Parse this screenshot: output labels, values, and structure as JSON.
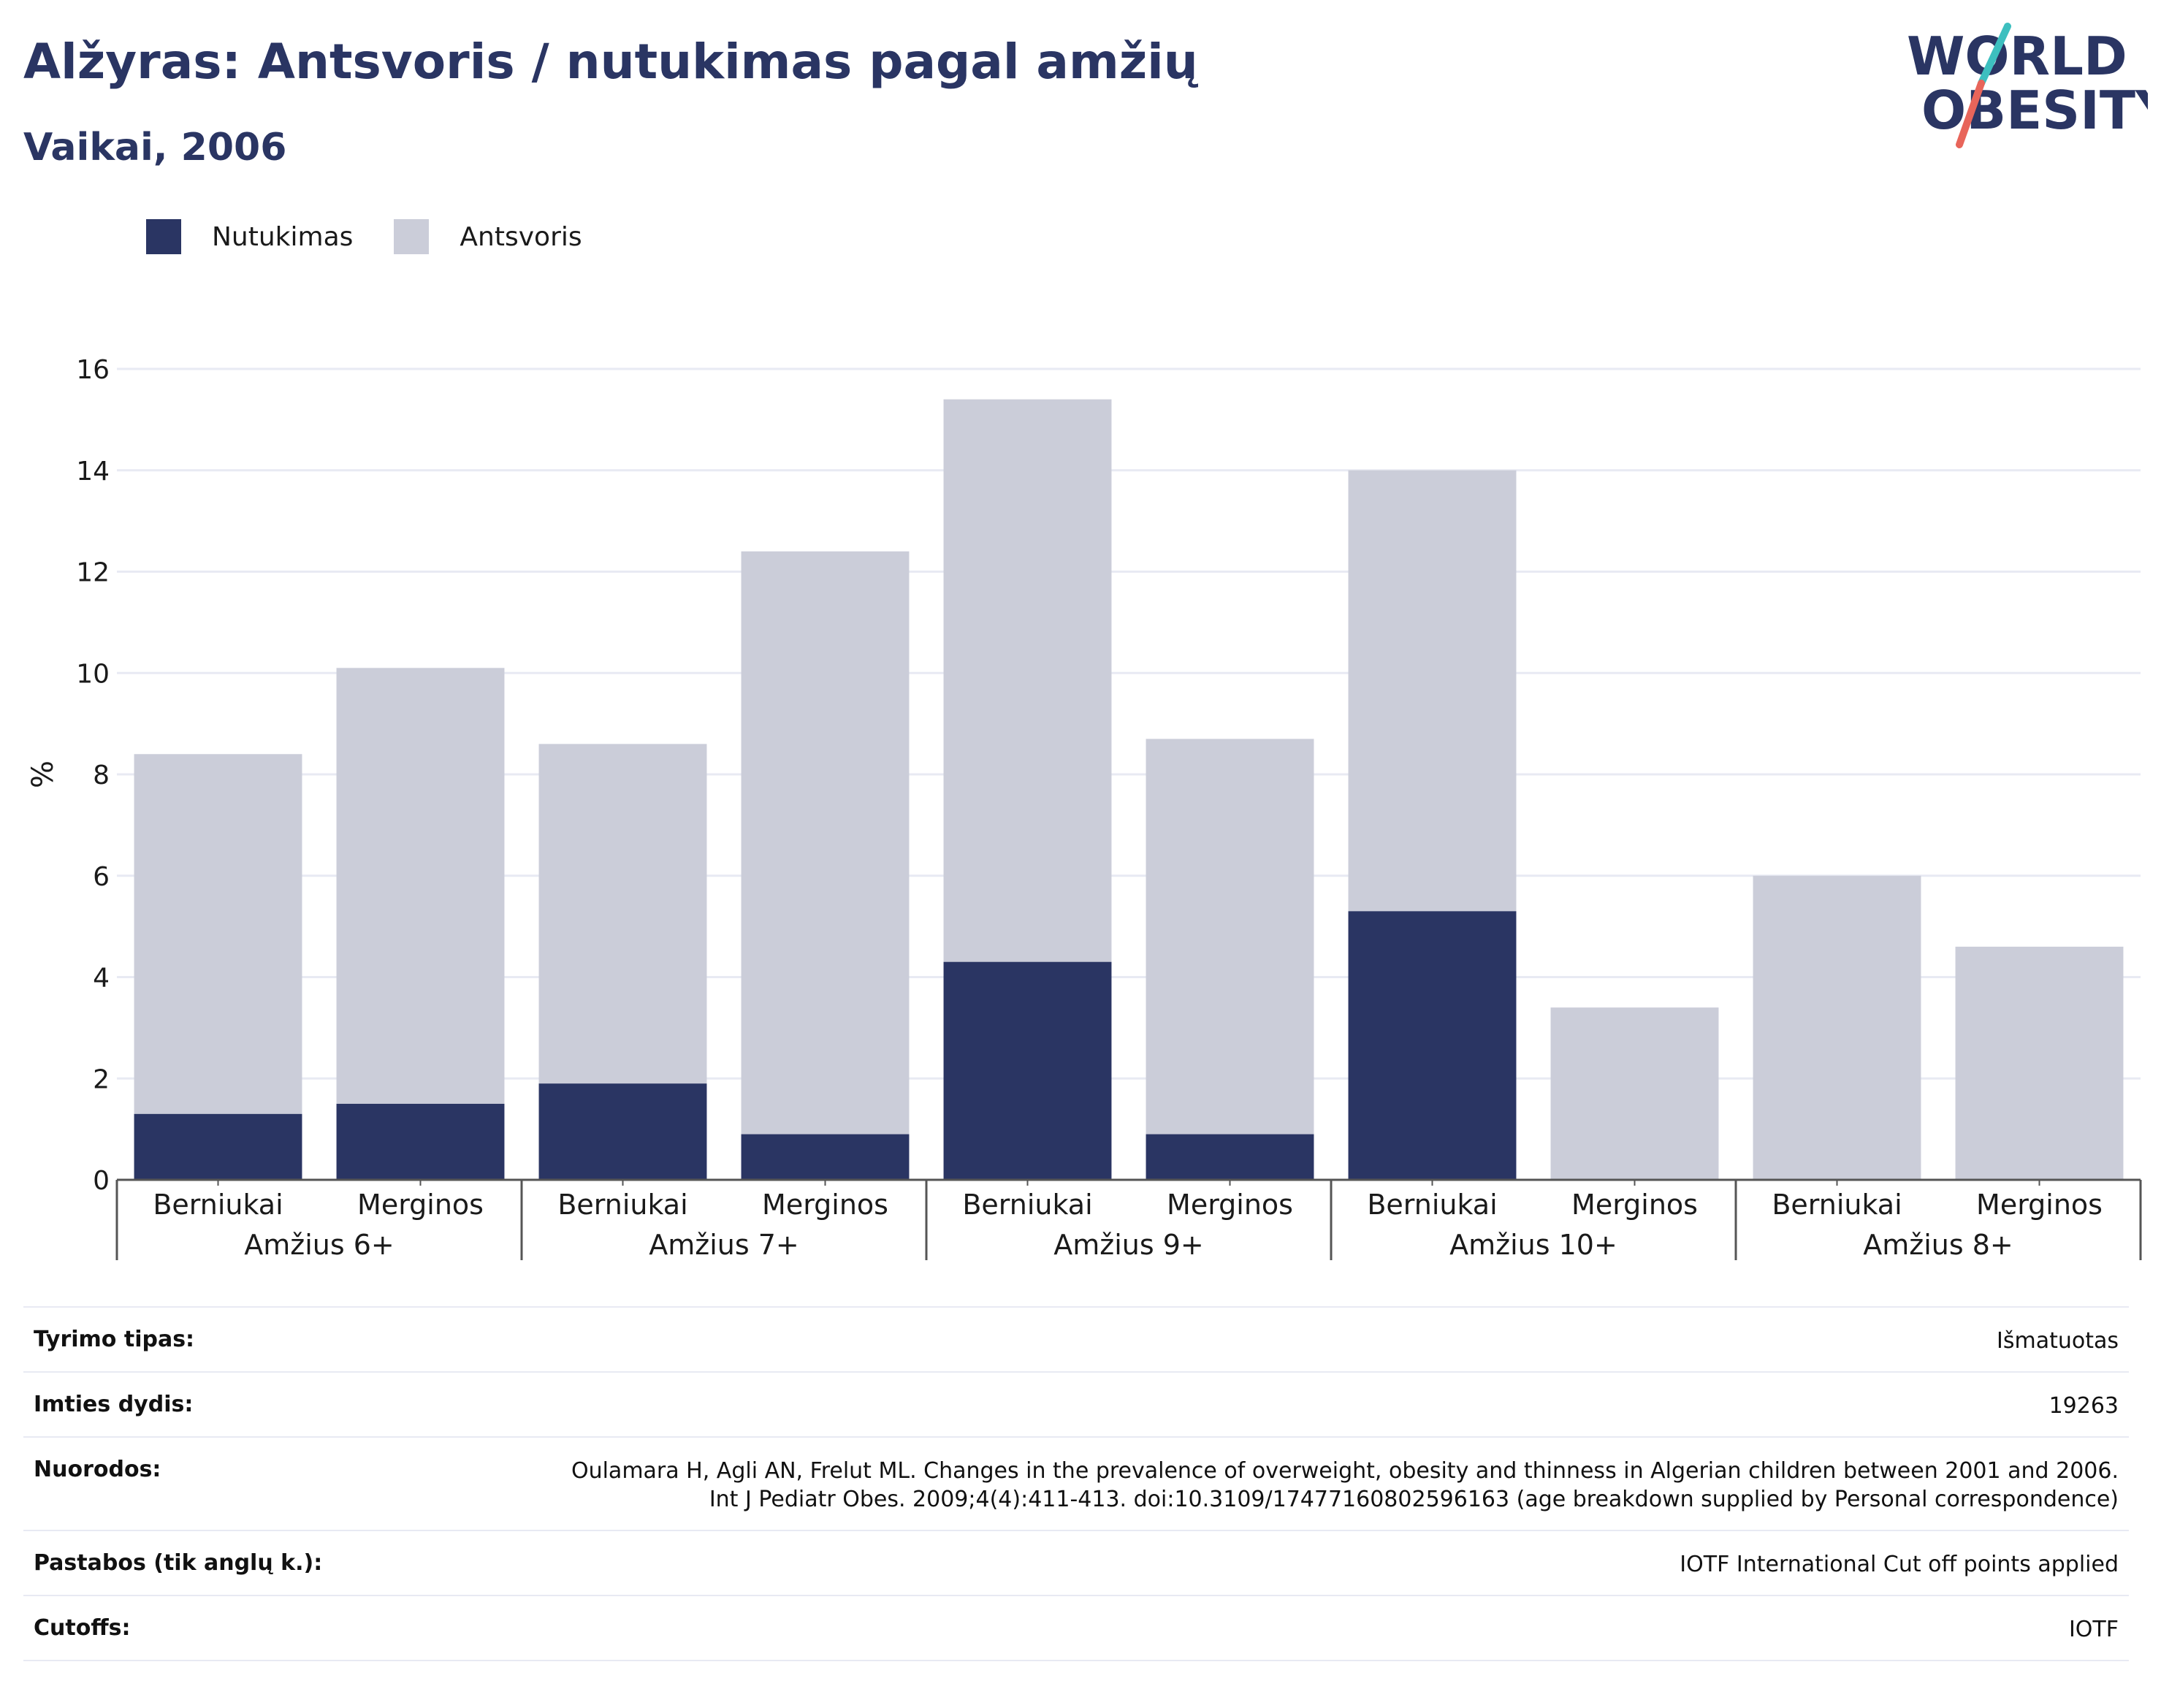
{
  "header": {
    "title": "Alžyras: Antsvoris / nutukimas pagal amžių",
    "subtitle": "Vaikai, 2006"
  },
  "logo": {
    "line1": "WORLD",
    "line2": "OBESITY"
  },
  "colors": {
    "obesity": "#2a3563",
    "overweight": "#cbcdd9",
    "text": "#2a3563",
    "grid": "#e8eaf3",
    "logo_teal": "#3dbfbf",
    "logo_red": "#e8655a"
  },
  "legend": [
    {
      "label": "Nutukimas",
      "color": "#2a3563"
    },
    {
      "label": "Antsvoris",
      "color": "#cbcdd9"
    }
  ],
  "chart_data": {
    "type": "bar",
    "stacked": true,
    "ylabel": "%",
    "ylim": [
      0,
      16
    ],
    "yticks": [
      0,
      2,
      4,
      6,
      8,
      10,
      12,
      14,
      16
    ],
    "grid": true,
    "legend_position": "top-left",
    "groups": [
      "Amžius 6+",
      "Amžius 7+",
      "Amžius 9+",
      "Amžius 10+",
      "Amžius 8+"
    ],
    "subcategories": [
      "Berniukai",
      "Merginos"
    ],
    "series": [
      {
        "name": "Nutukimas",
        "values": [
          1.3,
          1.5,
          1.9,
          0.9,
          4.3,
          0.9,
          5.3,
          0,
          0,
          0
        ]
      },
      {
        "name": "Antsvoris",
        "values": [
          7.1,
          8.6,
          6.7,
          11.5,
          11.1,
          7.8,
          8.7,
          3.4,
          6.0,
          4.6
        ]
      }
    ]
  },
  "info": [
    {
      "label": "Tyrimo tipas:",
      "value": "Išmatuotas"
    },
    {
      "label": "Imties dydis:",
      "value": "19263"
    },
    {
      "label": "Nuorodos:",
      "value": "Oulamara H, Agli AN, Frelut ML. Changes in the prevalence of overweight, obesity and thinness in Algerian children between 2001 and 2006. Int J Pediatr Obes. 2009;4(4):411-413. doi:10.3109/17477160802596163 (age breakdown supplied by Personal correspondence)"
    },
    {
      "label": "Pastabos (tik anglų k.):",
      "value": "IOTF International Cut off points applied"
    },
    {
      "label": "Cutoffs:",
      "value": "IOTF"
    }
  ]
}
